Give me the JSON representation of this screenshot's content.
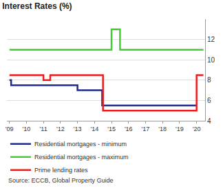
{
  "chart_data": {
    "type": "line",
    "title": "Interest Rates (%)",
    "source": "Source: ECCB, Global Property Guide",
    "xlim": [
      2008.85,
      2020.5
    ],
    "xticks": [
      {
        "value": 2009,
        "label": "'09"
      },
      {
        "value": 2010,
        "label": "'10"
      },
      {
        "value": 2011,
        "label": "'11"
      },
      {
        "value": 2012,
        "label": "'12"
      },
      {
        "value": 2013,
        "label": "'13"
      },
      {
        "value": 2014,
        "label": "'14"
      },
      {
        "value": 2015,
        "label": "'15"
      },
      {
        "value": 2016,
        "label": "'16"
      },
      {
        "value": 2017,
        "label": "'17"
      },
      {
        "value": 2018,
        "label": "'18"
      },
      {
        "value": 2019,
        "label": "'19"
      },
      {
        "value": 2020,
        "label": "'20"
      }
    ],
    "ylim": [
      4,
      14
    ],
    "yticks": [
      4,
      6,
      8,
      10,
      12
    ],
    "grid": true,
    "legend": "bottom",
    "series": [
      {
        "name": "Residential mortgages - minimum",
        "color": "#1c2b8f",
        "x": [
          2009,
          2009.1,
          2009.1,
          2013,
          2013,
          2014.45,
          2014.45,
          2020
        ],
        "values": [
          8,
          8,
          7.5,
          7.5,
          7,
          7,
          5.5,
          5.5
        ]
      },
      {
        "name": "Residential mortgages - maximum",
        "color": "#44cc33",
        "x": [
          2009,
          2015,
          2015,
          2015.5,
          2015.5,
          2020.4
        ],
        "values": [
          11,
          11,
          13,
          13,
          11,
          11
        ]
      },
      {
        "name": "Prime lending rates",
        "color": "#ee1c1c",
        "x": [
          2009,
          2011,
          2011,
          2011.4,
          2011.4,
          2014.5,
          2014.5,
          2020,
          2020,
          2020.4
        ],
        "values": [
          8.5,
          8.5,
          8,
          8,
          8.5,
          8.5,
          5,
          5,
          8.5,
          8.5
        ]
      }
    ]
  }
}
